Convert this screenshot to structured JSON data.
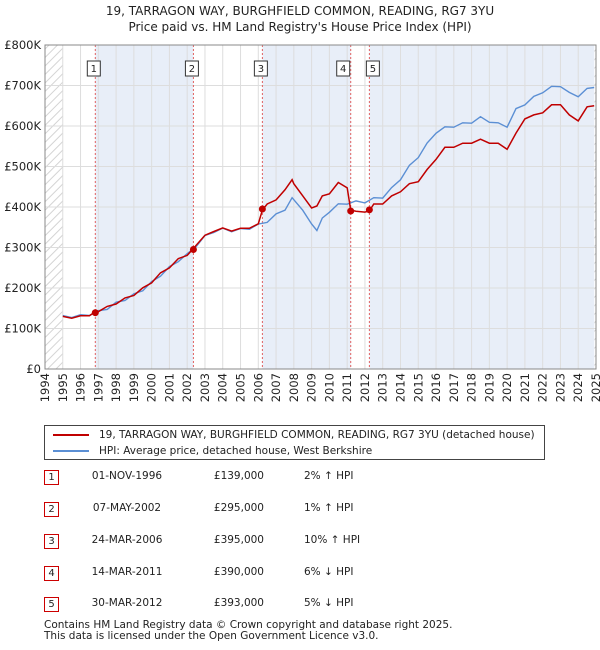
{
  "title_lines": [
    "19, TARRAGON WAY, BURGHFIELD COMMON, READING, RG7 3YU",
    "Price paid vs. HM Land Registry's House Price Index (HPI)"
  ],
  "colors": {
    "property_line": "#c00000",
    "hpi_line": "#5b8fd4",
    "hatch": "#d0d0d0",
    "shade": "#e8eef8",
    "grid": "#dddddd",
    "marker_line": "#e06060"
  },
  "legend": {
    "property_label": "19, TARRAGON WAY, BURGHFIELD COMMON, READING, RG7 3YU (detached house)",
    "hpi_label": "HPI: Average price, detached house, West Berkshire"
  },
  "sales": [
    {
      "num": "1",
      "date": "01-NOV-1996",
      "price": "£139,000",
      "hpi": "2% ↑ HPI"
    },
    {
      "num": "2",
      "date": "07-MAY-2002",
      "price": "£295,000",
      "hpi": "1% ↑ HPI"
    },
    {
      "num": "3",
      "date": "24-MAR-2006",
      "price": "£395,000",
      "hpi": "10% ↑ HPI"
    },
    {
      "num": "4",
      "date": "14-MAR-2011",
      "price": "£390,000",
      "hpi": "6% ↓ HPI"
    },
    {
      "num": "5",
      "date": "30-MAR-2012",
      "price": "£393,000",
      "hpi": "5% ↓ HPI"
    }
  ],
  "footer": {
    "line1": "Contains HM Land Registry data © Crown copyright and database right 2025.",
    "line2": "This data is licensed under the Open Government Licence v3.0."
  },
  "chart_data": {
    "type": "line",
    "title": "19, TARRAGON WAY, BURGHFIELD COMMON, READING, RG7 3YU — Price paid vs. HM Land Registry's House Price Index (HPI)",
    "xlabel": "",
    "ylabel": "",
    "xlim": [
      1994,
      2025
    ],
    "ylim": [
      0,
      800000
    ],
    "x_ticks": [
      1994,
      1995,
      1996,
      1997,
      1998,
      1999,
      2000,
      2001,
      2002,
      2003,
      2004,
      2005,
      2006,
      2007,
      2008,
      2009,
      2010,
      2011,
      2012,
      2013,
      2014,
      2015,
      2016,
      2017,
      2018,
      2019,
      2020,
      2021,
      2022,
      2023,
      2024,
      2025
    ],
    "y_ticks": [
      {
        "value": 0,
        "label": "£0"
      },
      {
        "value": 100000,
        "label": "£100K"
      },
      {
        "value": 200000,
        "label": "£200K"
      },
      {
        "value": 300000,
        "label": "£300K"
      },
      {
        "value": 400000,
        "label": "£400K"
      },
      {
        "value": 500000,
        "label": "£500K"
      },
      {
        "value": 600000,
        "label": "£600K"
      },
      {
        "value": 700000,
        "label": "£700K"
      },
      {
        "value": 800000,
        "label": "£800K"
      }
    ],
    "no_data_before": 1995.0,
    "no_data_after": 2024.9,
    "sale_markers": [
      {
        "label": "1",
        "x": 1996.83,
        "y": 139000
      },
      {
        "label": "2",
        "x": 2002.35,
        "y": 295000
      },
      {
        "label": "3",
        "x": 2006.23,
        "y": 395000
      },
      {
        "label": "4",
        "x": 2011.2,
        "y": 390000
      },
      {
        "label": "5",
        "x": 2012.25,
        "y": 393000
      }
    ],
    "series": [
      {
        "name": "19, TARRAGON WAY, BURGHFIELD COMMON, READING, RG7 3YU (detached house)",
        "x": [
          1995.0,
          1995.5,
          1996.0,
          1996.5,
          1996.83,
          1997.0,
          1997.5,
          1998.0,
          1998.5,
          1999.0,
          1999.5,
          2000.0,
          2000.5,
          2001.0,
          2001.5,
          2002.0,
          2002.35,
          2002.5,
          2003.0,
          2003.5,
          2004.0,
          2004.5,
          2005.0,
          2005.5,
          2006.0,
          2006.23,
          2006.5,
          2007.0,
          2007.5,
          2007.9,
          2008.0,
          2008.5,
          2009.0,
          2009.3,
          2009.6,
          2010.0,
          2010.5,
          2011.0,
          2011.2,
          2011.5,
          2012.0,
          2012.25,
          2012.5,
          2013.0,
          2013.5,
          2014.0,
          2014.5,
          2015.0,
          2015.5,
          2016.0,
          2016.5,
          2017.0,
          2017.5,
          2018.0,
          2018.5,
          2019.0,
          2019.5,
          2020.0,
          2020.5,
          2021.0,
          2021.5,
          2022.0,
          2022.5,
          2023.0,
          2023.5,
          2024.0,
          2024.5,
          2024.9
        ],
        "values": [
          130000,
          128000,
          129000,
          134000,
          139000,
          144000,
          152000,
          163000,
          173000,
          184000,
          198000,
          215000,
          235000,
          252000,
          270000,
          283000,
          295000,
          308000,
          328000,
          342000,
          346000,
          343000,
          345000,
          350000,
          356000,
          395000,
          405000,
          420000,
          440000,
          470000,
          455000,
          430000,
          395000,
          405000,
          425000,
          435000,
          458000,
          450000,
          390000,
          392000,
          385000,
          393000,
          405000,
          410000,
          425000,
          440000,
          455000,
          465000,
          490000,
          520000,
          545000,
          550000,
          555000,
          560000,
          565000,
          560000,
          555000,
          545000,
          580000,
          620000,
          625000,
          635000,
          650000,
          655000,
          625000,
          615000,
          645000,
          650000
        ]
      },
      {
        "name": "HPI: Average price, detached house, West Berkshire",
        "x": [
          1995.0,
          1995.5,
          1996.0,
          1996.5,
          1997.0,
          1997.5,
          1998.0,
          1998.5,
          1999.0,
          1999.5,
          2000.0,
          2000.5,
          2001.0,
          2001.5,
          2002.0,
          2002.5,
          2003.0,
          2003.5,
          2004.0,
          2004.5,
          2005.0,
          2005.5,
          2006.0,
          2006.5,
          2007.0,
          2007.5,
          2007.9,
          2008.5,
          2009.0,
          2009.3,
          2009.6,
          2010.0,
          2010.5,
          2011.0,
          2011.5,
          2012.0,
          2012.5,
          2013.0,
          2013.5,
          2014.0,
          2014.5,
          2015.0,
          2015.5,
          2016.0,
          2016.5,
          2017.0,
          2017.5,
          2018.0,
          2018.5,
          2019.0,
          2019.5,
          2020.0,
          2020.5,
          2021.0,
          2021.5,
          2022.0,
          2022.5,
          2023.0,
          2023.5,
          2024.0,
          2024.5,
          2024.9
        ],
        "values": [
          132000,
          130000,
          131000,
          135000,
          141000,
          150000,
          162000,
          172000,
          183000,
          196000,
          213000,
          232000,
          250000,
          268000,
          282000,
          305000,
          327000,
          340000,
          345000,
          342000,
          344000,
          348000,
          355000,
          365000,
          380000,
          395000,
          420000,
          395000,
          355000,
          345000,
          370000,
          390000,
          405000,
          410000,
          412000,
          413000,
          420000,
          425000,
          445000,
          470000,
          500000,
          525000,
          555000,
          585000,
          595000,
          600000,
          605000,
          610000,
          620000,
          612000,
          605000,
          600000,
          640000,
          655000,
          670000,
          685000,
          695000,
          700000,
          680000,
          675000,
          690000,
          695000
        ]
      }
    ]
  }
}
